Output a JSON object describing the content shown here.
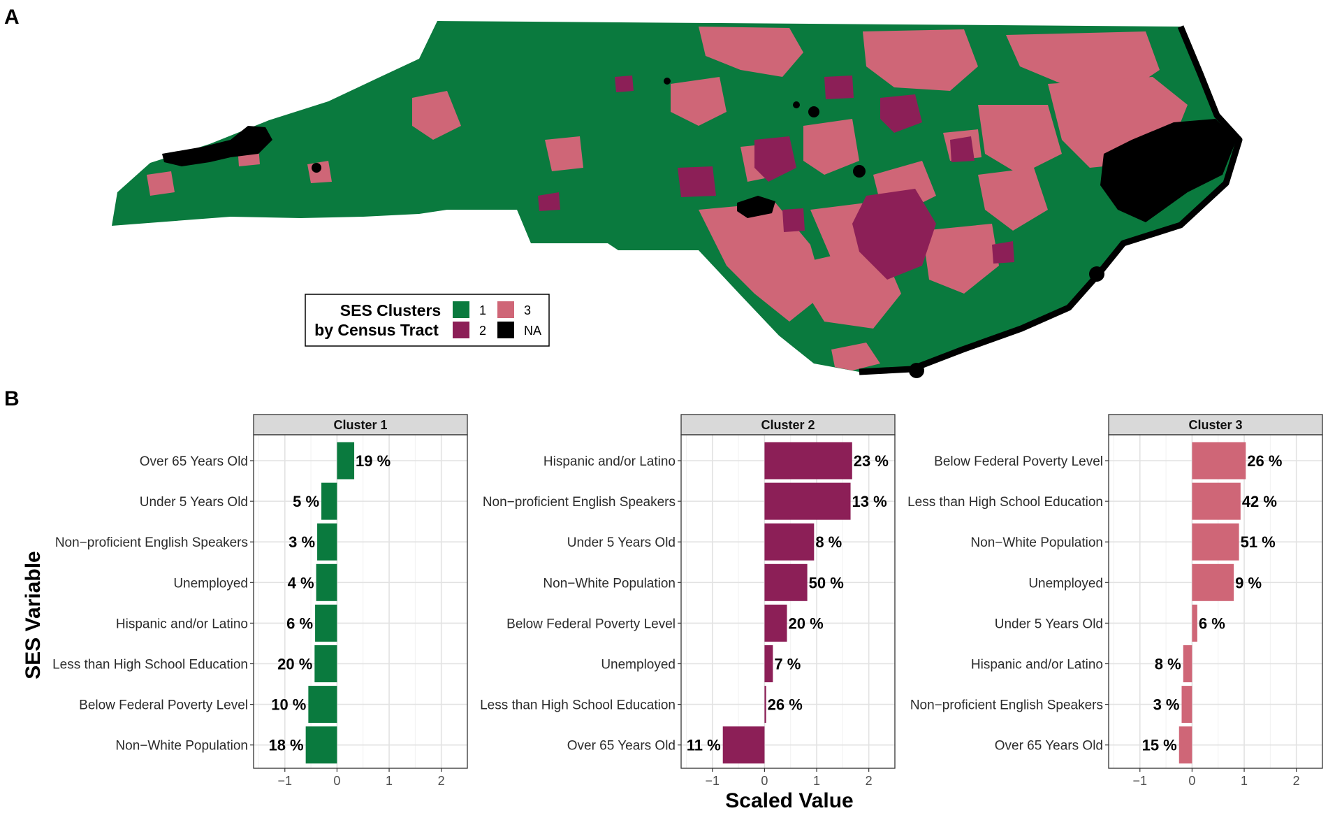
{
  "panels": {
    "a_label": "A",
    "b_label": "B"
  },
  "colors": {
    "cluster1": "#0a7a3e",
    "cluster2": "#8c1f57",
    "cluster3": "#cf6677",
    "na": "#000000"
  },
  "legend": {
    "title_line1": "SES Clusters",
    "title_line2": "by Census Tract",
    "items": [
      {
        "label": "1",
        "color": "#0a7a3e"
      },
      {
        "label": "2",
        "color": "#8c1f57"
      },
      {
        "label": "3",
        "color": "#cf6677"
      },
      {
        "label": "NA",
        "color": "#000000"
      }
    ]
  },
  "chart_data": {
    "type": "bar",
    "orientation": "horizontal",
    "xlabel": "Scaled Value",
    "ylabel": "SES Variable",
    "xlim": [
      -1.6,
      2.5
    ],
    "xticks": [
      -1,
      0,
      1,
      2
    ],
    "grid": true,
    "facets": [
      {
        "title": "Cluster 1",
        "color": "#0a7a3e",
        "categories": [
          "Over 65 Years Old",
          "Under 5 Years Old",
          "Non−proficient English Speakers",
          "Unemployed",
          "Hispanic and/or Latino",
          "Less than High School Education",
          "Below Federal Poverty Level",
          "Non−White Population"
        ],
        "values": [
          0.33,
          -0.3,
          -0.38,
          -0.4,
          -0.42,
          -0.43,
          -0.55,
          -0.6
        ],
        "labels": [
          "19 %",
          "5 %",
          "3 %",
          "4 %",
          "6 %",
          "20 %",
          "10 %",
          "18 %"
        ]
      },
      {
        "title": "Cluster 2",
        "color": "#8c1f57",
        "categories": [
          "Hispanic and/or Latino",
          "Non−proficient English Speakers",
          "Under 5 Years Old",
          "Non−White Population",
          "Below Federal Poverty Level",
          "Unemployed",
          "Less than High School Education",
          "Over 65 Years Old"
        ],
        "values": [
          1.68,
          1.65,
          0.95,
          0.82,
          0.43,
          0.16,
          0.03,
          -0.8
        ],
        "labels": [
          "23 %",
          "13 %",
          "8 %",
          "50 %",
          "20 %",
          "7 %",
          "26 %",
          "11 %"
        ]
      },
      {
        "title": "Cluster 3",
        "color": "#cf6677",
        "categories": [
          "Below Federal Poverty Level",
          "Less than High School Education",
          "Non−White Population",
          "Unemployed",
          "Under 5 Years Old",
          "Hispanic and/or Latino",
          "Non−proficient English Speakers",
          "Over 65 Years Old"
        ],
        "values": [
          1.03,
          0.93,
          0.9,
          0.8,
          0.1,
          -0.17,
          -0.2,
          -0.25
        ],
        "labels": [
          "26 %",
          "42 %",
          "51 %",
          "9 %",
          "6 %",
          "8 %",
          "3 %",
          "15 %"
        ]
      }
    ]
  }
}
